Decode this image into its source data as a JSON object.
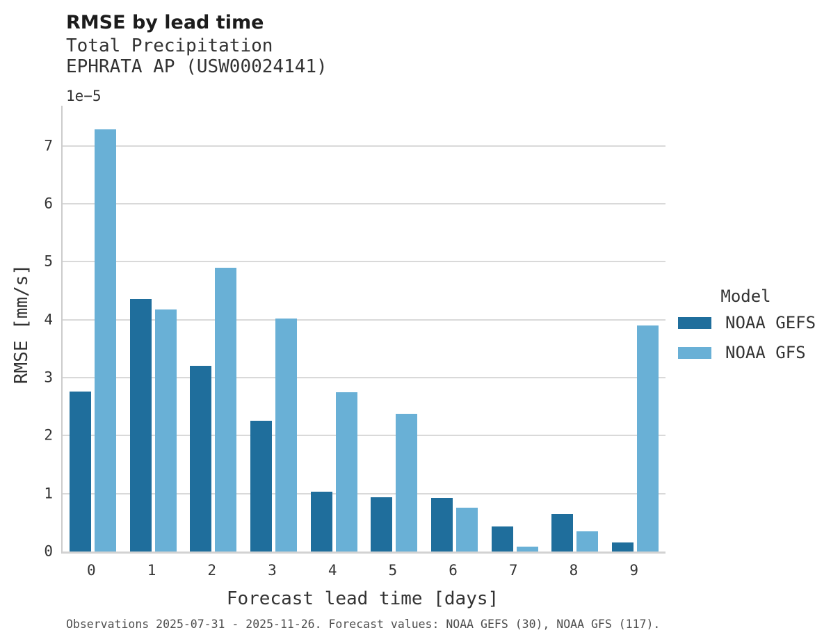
{
  "chart_data": {
    "type": "bar",
    "title": "RMSE by lead time",
    "subtitle1": "Total Precipitation",
    "subtitle2": "EPHRATA AP (USW00024141)",
    "y_offset_label": "1e−5",
    "xlabel": "Forecast lead time [days]",
    "ylabel": "RMSE [mm/s]",
    "categories": [
      "0",
      "1",
      "2",
      "3",
      "4",
      "5",
      "6",
      "7",
      "8",
      "9"
    ],
    "series": [
      {
        "name": "NOAA GEFS",
        "color": "#1f6e9c",
        "values": [
          2.76,
          4.35,
          3.2,
          2.25,
          1.03,
          0.94,
          0.92,
          0.43,
          0.65,
          0.16
        ]
      },
      {
        "name": "NOAA GFS",
        "color": "#69b0d6",
        "values": [
          7.28,
          4.17,
          4.89,
          4.02,
          2.75,
          2.38,
          0.75,
          0.08,
          0.35,
          3.9
        ]
      }
    ],
    "value_scale": "1e-5",
    "ylim": [
      0,
      7.69
    ],
    "y_ticks": [
      0,
      1,
      2,
      3,
      4,
      5,
      6,
      7
    ],
    "grid": true,
    "legend": {
      "title": "Model",
      "position": "right"
    },
    "style": {
      "grid_color": "#d9d9d9",
      "spine_color": "#cccccc"
    }
  },
  "footer": {
    "caption": "Observations 2025-07-31 - 2025-11-26. Forecast values: NOAA GEFS (30), NOAA GFS (117)."
  }
}
